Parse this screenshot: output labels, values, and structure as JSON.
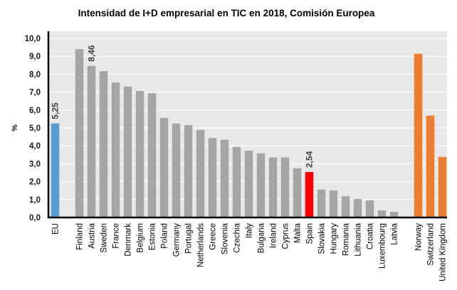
{
  "chart_data": {
    "type": "bar",
    "title": "Intensidad de I+D empresarial en TIC en 2018, Comisión Europea",
    "xlabel": "",
    "ylabel": "%",
    "ylim": [
      0,
      10
    ],
    "yticks": [
      "0,0",
      "1,0",
      "2,0",
      "3,0",
      "4,0",
      "5,0",
      "6,0",
      "7,0",
      "8,0",
      "9,0",
      "10,0"
    ],
    "grid": true,
    "legend": "none",
    "colors": {
      "eu": "#5b9bd5",
      "member": "#a5a5a5",
      "highlight": "#ff0000",
      "non_eu": "#ed7d31",
      "plot_background": "#e8e8e8",
      "gridline": "#ffffff"
    },
    "bars": [
      {
        "category": "EU",
        "value": 5.25,
        "group": "eu",
        "label": "5,25",
        "gap_after": true
      },
      {
        "category": "Finland",
        "value": 9.4,
        "group": "member"
      },
      {
        "category": "Austria",
        "value": 8.46,
        "group": "member",
        "label": "8,46"
      },
      {
        "category": "Sweden",
        "value": 8.17,
        "group": "member"
      },
      {
        "category": "France",
        "value": 7.54,
        "group": "member"
      },
      {
        "category": "Denmark",
        "value": 7.31,
        "group": "member"
      },
      {
        "category": "Belgium",
        "value": 7.06,
        "group": "member"
      },
      {
        "category": "Estonia",
        "value": 6.94,
        "group": "member"
      },
      {
        "category": "Poland",
        "value": 5.56,
        "group": "member"
      },
      {
        "category": "Germany",
        "value": 5.24,
        "group": "member"
      },
      {
        "category": "Portugal",
        "value": 5.16,
        "group": "member"
      },
      {
        "category": "Netherlands",
        "value": 4.89,
        "group": "member"
      },
      {
        "category": "Greece",
        "value": 4.44,
        "group": "member"
      },
      {
        "category": "Slovenia",
        "value": 4.34,
        "group": "member"
      },
      {
        "category": "Czechia",
        "value": 3.94,
        "group": "member"
      },
      {
        "category": "Italy",
        "value": 3.73,
        "group": "member"
      },
      {
        "category": "Bulgaria",
        "value": 3.58,
        "group": "member"
      },
      {
        "category": "Ireland",
        "value": 3.35,
        "group": "member"
      },
      {
        "category": "Cyprus",
        "value": 3.35,
        "group": "member"
      },
      {
        "category": "Malta",
        "value": 2.75,
        "group": "member"
      },
      {
        "category": "Spain",
        "value": 2.54,
        "group": "highlight",
        "label": "2,54"
      },
      {
        "category": "Slovakia",
        "value": 1.56,
        "group": "member"
      },
      {
        "category": "Hungary",
        "value": 1.51,
        "group": "member"
      },
      {
        "category": "Romania",
        "value": 1.19,
        "group": "member"
      },
      {
        "category": "Lithuania",
        "value": 1.03,
        "group": "member"
      },
      {
        "category": "Croatia",
        "value": 0.96,
        "group": "member"
      },
      {
        "category": "Luxembourg",
        "value": 0.4,
        "group": "member"
      },
      {
        "category": "Latvia",
        "value": 0.32,
        "group": "member",
        "gap_after": true
      },
      {
        "category": "Norway",
        "value": 9.14,
        "group": "non_eu"
      },
      {
        "category": "Switzerland",
        "value": 5.69,
        "group": "non_eu"
      },
      {
        "category": "United Kingdom",
        "value": 3.38,
        "group": "non_eu"
      }
    ]
  }
}
